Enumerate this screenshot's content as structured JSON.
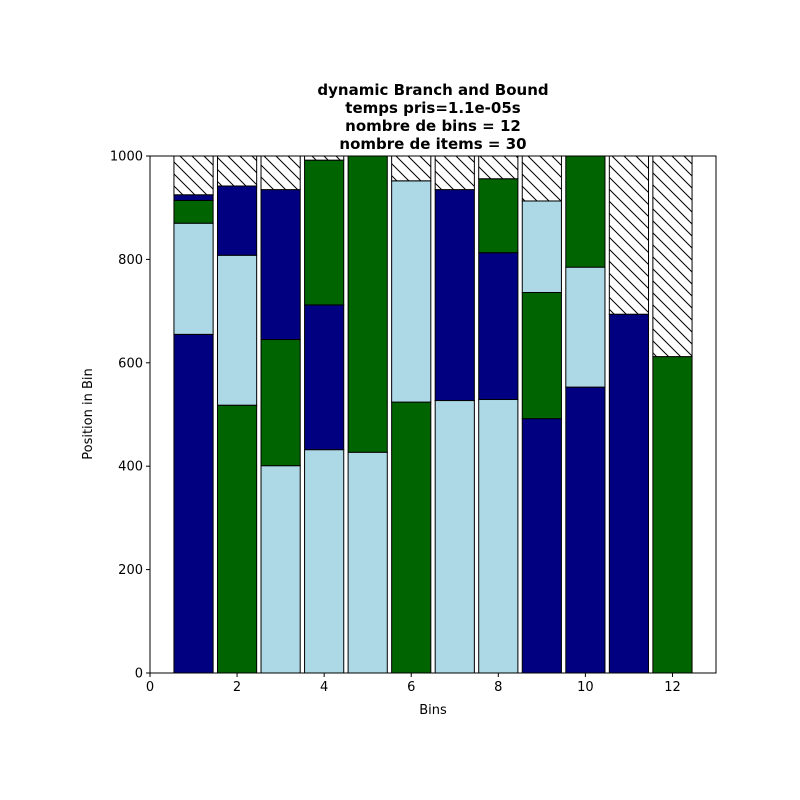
{
  "chart_data": {
    "type": "bar",
    "stacked": true,
    "title_lines": [
      "dynamic Branch and Bound",
      "temps pris=1.1e-05s",
      "nombre de bins = 12",
      "nombre de items = 30"
    ],
    "xlabel": "Bins",
    "ylabel": "Position in Bin",
    "xlim": [
      0,
      13
    ],
    "ylim": [
      0,
      1000
    ],
    "xticks": [
      0,
      2,
      4,
      6,
      8,
      10,
      12
    ],
    "yticks": [
      0,
      200,
      400,
      600,
      800,
      1000
    ],
    "grid": false,
    "bin_capacity": 1000,
    "colors": {
      "navy": "#000080",
      "green": "#006400",
      "lightblue": "#add8e6",
      "empty": "#ffffff",
      "edge": "#000000"
    },
    "bins": [
      {
        "bin": 1,
        "items": [
          {
            "start": 0,
            "end": 655,
            "color": "navy"
          },
          {
            "start": 655,
            "end": 870,
            "color": "lightblue"
          },
          {
            "start": 870,
            "end": 914,
            "color": "green"
          },
          {
            "start": 914,
            "end": 925,
            "color": "navy"
          }
        ]
      },
      {
        "bin": 2,
        "items": [
          {
            "start": 0,
            "end": 518,
            "color": "green"
          },
          {
            "start": 518,
            "end": 808,
            "color": "lightblue"
          },
          {
            "start": 808,
            "end": 942,
            "color": "navy"
          }
        ]
      },
      {
        "bin": 3,
        "items": [
          {
            "start": 0,
            "end": 401,
            "color": "lightblue"
          },
          {
            "start": 401,
            "end": 645,
            "color": "green"
          },
          {
            "start": 645,
            "end": 935,
            "color": "navy"
          }
        ]
      },
      {
        "bin": 4,
        "items": [
          {
            "start": 0,
            "end": 432,
            "color": "lightblue"
          },
          {
            "start": 432,
            "end": 712,
            "color": "navy"
          },
          {
            "start": 712,
            "end": 992,
            "color": "green"
          }
        ]
      },
      {
        "bin": 5,
        "items": [
          {
            "start": 0,
            "end": 427,
            "color": "lightblue"
          },
          {
            "start": 427,
            "end": 1000,
            "color": "green"
          }
        ]
      },
      {
        "bin": 6,
        "items": [
          {
            "start": 0,
            "end": 524,
            "color": "green"
          },
          {
            "start": 524,
            "end": 952,
            "color": "lightblue"
          }
        ]
      },
      {
        "bin": 7,
        "items": [
          {
            "start": 0,
            "end": 527,
            "color": "lightblue"
          },
          {
            "start": 527,
            "end": 935,
            "color": "navy"
          }
        ]
      },
      {
        "bin": 8,
        "items": [
          {
            "start": 0,
            "end": 529,
            "color": "lightblue"
          },
          {
            "start": 529,
            "end": 813,
            "color": "navy"
          },
          {
            "start": 813,
            "end": 956,
            "color": "green"
          }
        ]
      },
      {
        "bin": 9,
        "items": [
          {
            "start": 0,
            "end": 492,
            "color": "navy"
          },
          {
            "start": 492,
            "end": 736,
            "color": "green"
          },
          {
            "start": 736,
            "end": 913,
            "color": "lightblue"
          }
        ]
      },
      {
        "bin": 10,
        "items": [
          {
            "start": 0,
            "end": 553,
            "color": "navy"
          },
          {
            "start": 553,
            "end": 785,
            "color": "lightblue"
          },
          {
            "start": 785,
            "end": 1000,
            "color": "green"
          }
        ]
      },
      {
        "bin": 11,
        "items": [
          {
            "start": 0,
            "end": 694,
            "color": "navy"
          }
        ]
      },
      {
        "bin": 12,
        "items": [
          {
            "start": 0,
            "end": 612,
            "color": "green"
          }
        ]
      }
    ]
  }
}
